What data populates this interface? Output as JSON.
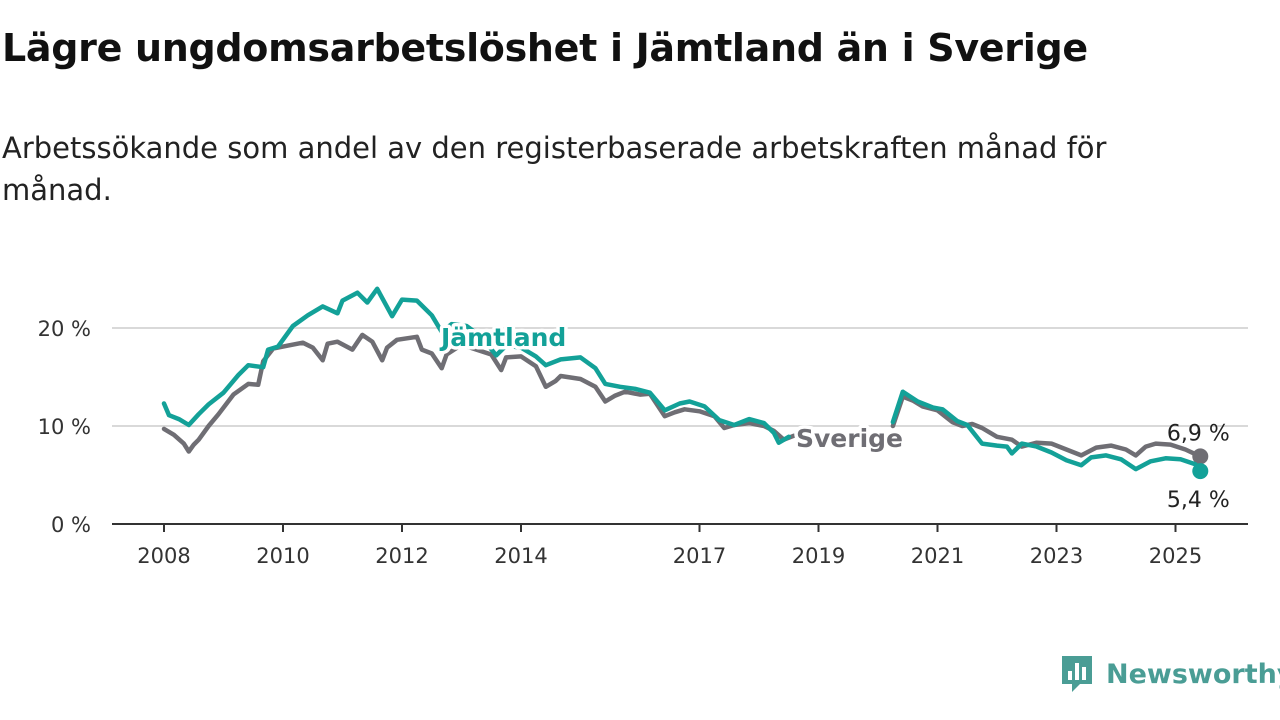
{
  "header": {
    "title": "Lägre ungdomsarbetslöshet i Jämtland än i Sverige",
    "subtitle": "Arbetssökande som andel av den registerbaserade arbetskraften månad för månad."
  },
  "brand": {
    "name": "Newsworthy",
    "icon": "bar-chart-speech-bubble-icon",
    "color": "#4a9d95"
  },
  "chart_data": {
    "type": "line",
    "x_type": "date",
    "x_ticks": [
      "2008",
      "2010",
      "2012",
      "2014",
      "2017",
      "2019",
      "2021",
      "2023",
      "2025"
    ],
    "x_range": [
      "2007-07",
      "2026-01"
    ],
    "ylim": [
      0,
      25
    ],
    "y_ticks": [
      {
        "value": 0,
        "label": "0 %"
      },
      {
        "value": 10,
        "label": "10 %"
      },
      {
        "value": 20,
        "label": "20 %"
      }
    ],
    "grid": true,
    "series": [
      {
        "name": "Sverige",
        "color": "#6f6e74",
        "end_label": "6,9 %",
        "points": [
          [
            "2008-01",
            9.7
          ],
          [
            "2008-03",
            9.1
          ],
          [
            "2008-05",
            8.2
          ],
          [
            "2008-06",
            7.4
          ],
          [
            "2008-07",
            8.1
          ],
          [
            "2008-08",
            8.6
          ],
          [
            "2008-10",
            10.0
          ],
          [
            "2008-12",
            11.2
          ],
          [
            "2009-03",
            13.2
          ],
          [
            "2009-06",
            14.3
          ],
          [
            "2009-08",
            14.2
          ],
          [
            "2009-09",
            16.6
          ],
          [
            "2009-11",
            17.9
          ],
          [
            "2010-02",
            18.2
          ],
          [
            "2010-05",
            18.5
          ],
          [
            "2010-07",
            18.0
          ],
          [
            "2010-09",
            16.7
          ],
          [
            "2010-10",
            18.4
          ],
          [
            "2010-12",
            18.6
          ],
          [
            "2011-03",
            17.8
          ],
          [
            "2011-05",
            19.3
          ],
          [
            "2011-07",
            18.6
          ],
          [
            "2011-09",
            16.7
          ],
          [
            "2011-10",
            18.0
          ],
          [
            "2011-12",
            18.8
          ],
          [
            "2012-04",
            19.1
          ],
          [
            "2012-05",
            17.8
          ],
          [
            "2012-07",
            17.4
          ],
          [
            "2012-09",
            15.9
          ],
          [
            "2012-10",
            17.3
          ],
          [
            "2013-01",
            18.3
          ],
          [
            "2013-04",
            17.8
          ],
          [
            "2013-07",
            17.3
          ],
          [
            "2013-09",
            15.7
          ],
          [
            "2013-10",
            17.0
          ],
          [
            "2014-01",
            17.1
          ],
          [
            "2014-04",
            16.1
          ],
          [
            "2014-06",
            14.0
          ],
          [
            "2014-08",
            14.6
          ],
          [
            "2014-09",
            15.1
          ],
          [
            "2015-01",
            14.8
          ],
          [
            "2015-04",
            14.0
          ],
          [
            "2015-06",
            12.5
          ],
          [
            "2015-08",
            13.1
          ],
          [
            "2015-10",
            13.5
          ],
          [
            "2016-01",
            13.2
          ],
          [
            "2016-03",
            13.3
          ],
          [
            "2016-06",
            11.0
          ],
          [
            "2016-08",
            11.4
          ],
          [
            "2016-10",
            11.7
          ],
          [
            "2017-01",
            11.5
          ],
          [
            "2017-04",
            11.0
          ],
          [
            "2017-06",
            9.8
          ],
          [
            "2017-08",
            10.1
          ],
          [
            "2017-11",
            10.3
          ],
          [
            "2018-02",
            10.0
          ],
          [
            "2018-04",
            9.5
          ],
          [
            "2018-06",
            8.6
          ],
          [
            "2018-08",
            9.0
          ],
          [
            "2020-04",
            10.0
          ],
          [
            "2020-06",
            13.0
          ],
          [
            "2020-08",
            12.6
          ],
          [
            "2020-10",
            12.0
          ],
          [
            "2021-01",
            11.6
          ],
          [
            "2021-04",
            10.4
          ],
          [
            "2021-06",
            10.0
          ],
          [
            "2021-08",
            10.2
          ],
          [
            "2021-10",
            9.8
          ],
          [
            "2022-01",
            8.9
          ],
          [
            "2022-04",
            8.6
          ],
          [
            "2022-06",
            7.9
          ],
          [
            "2022-09",
            8.3
          ],
          [
            "2022-12",
            8.2
          ],
          [
            "2023-03",
            7.6
          ],
          [
            "2023-06",
            7.0
          ],
          [
            "2023-09",
            7.8
          ],
          [
            "2023-12",
            8.0
          ],
          [
            "2024-03",
            7.6
          ],
          [
            "2024-05",
            7.0
          ],
          [
            "2024-07",
            7.9
          ],
          [
            "2024-09",
            8.2
          ],
          [
            "2024-12",
            8.1
          ],
          [
            "2025-03",
            7.6
          ],
          [
            "2025-06",
            6.9
          ]
        ]
      },
      {
        "name": "Jämtland",
        "color": "#13a198",
        "end_label": "5,4 %",
        "points": [
          [
            "2008-01",
            12.3
          ],
          [
            "2008-02",
            11.1
          ],
          [
            "2008-04",
            10.7
          ],
          [
            "2008-06",
            10.1
          ],
          [
            "2008-08",
            11.2
          ],
          [
            "2008-10",
            12.2
          ],
          [
            "2009-01",
            13.4
          ],
          [
            "2009-04",
            15.2
          ],
          [
            "2009-06",
            16.2
          ],
          [
            "2009-09",
            16.0
          ],
          [
            "2009-10",
            17.8
          ],
          [
            "2009-12",
            18.1
          ],
          [
            "2010-03",
            20.2
          ],
          [
            "2010-06",
            21.3
          ],
          [
            "2010-09",
            22.2
          ],
          [
            "2010-12",
            21.5
          ],
          [
            "2011-01",
            22.8
          ],
          [
            "2011-04",
            23.6
          ],
          [
            "2011-06",
            22.6
          ],
          [
            "2011-08",
            24.0
          ],
          [
            "2011-11",
            21.2
          ],
          [
            "2012-01",
            22.9
          ],
          [
            "2012-04",
            22.8
          ],
          [
            "2012-07",
            21.3
          ],
          [
            "2012-09",
            19.6
          ],
          [
            "2012-11",
            20.4
          ],
          [
            "2013-02",
            20.2
          ],
          [
            "2013-05",
            19.1
          ],
          [
            "2013-08",
            17.2
          ],
          [
            "2013-10",
            18.2
          ],
          [
            "2014-01",
            18.0
          ],
          [
            "2014-04",
            17.1
          ],
          [
            "2014-06",
            16.2
          ],
          [
            "2014-09",
            16.8
          ],
          [
            "2015-01",
            17.0
          ],
          [
            "2015-04",
            15.9
          ],
          [
            "2015-06",
            14.3
          ],
          [
            "2015-09",
            14.0
          ],
          [
            "2015-12",
            13.8
          ],
          [
            "2016-03",
            13.4
          ],
          [
            "2016-06",
            11.6
          ],
          [
            "2016-09",
            12.3
          ],
          [
            "2016-11",
            12.5
          ],
          [
            "2017-02",
            12.0
          ],
          [
            "2017-05",
            10.6
          ],
          [
            "2017-08",
            10.1
          ],
          [
            "2017-11",
            10.7
          ],
          [
            "2018-02",
            10.3
          ],
          [
            "2018-04",
            9.3
          ],
          [
            "2018-05",
            8.3
          ],
          [
            "2018-07",
            8.9
          ],
          [
            "2020-04",
            10.4
          ],
          [
            "2020-06",
            13.5
          ],
          [
            "2020-09",
            12.5
          ],
          [
            "2020-12",
            11.9
          ],
          [
            "2021-02",
            11.7
          ],
          [
            "2021-05",
            10.5
          ],
          [
            "2021-07",
            10.1
          ],
          [
            "2021-10",
            8.2
          ],
          [
            "2022-01",
            8.0
          ],
          [
            "2022-03",
            7.9
          ],
          [
            "2022-04",
            7.2
          ],
          [
            "2022-06",
            8.2
          ],
          [
            "2022-09",
            7.9
          ],
          [
            "2022-12",
            7.3
          ],
          [
            "2023-03",
            6.5
          ],
          [
            "2023-06",
            6.0
          ],
          [
            "2023-08",
            6.8
          ],
          [
            "2023-11",
            7.0
          ],
          [
            "2024-02",
            6.6
          ],
          [
            "2024-05",
            5.6
          ],
          [
            "2024-08",
            6.4
          ],
          [
            "2024-11",
            6.7
          ],
          [
            "2025-02",
            6.6
          ],
          [
            "2025-05",
            6.1
          ],
          [
            "2025-06",
            5.4
          ]
        ]
      }
    ]
  }
}
